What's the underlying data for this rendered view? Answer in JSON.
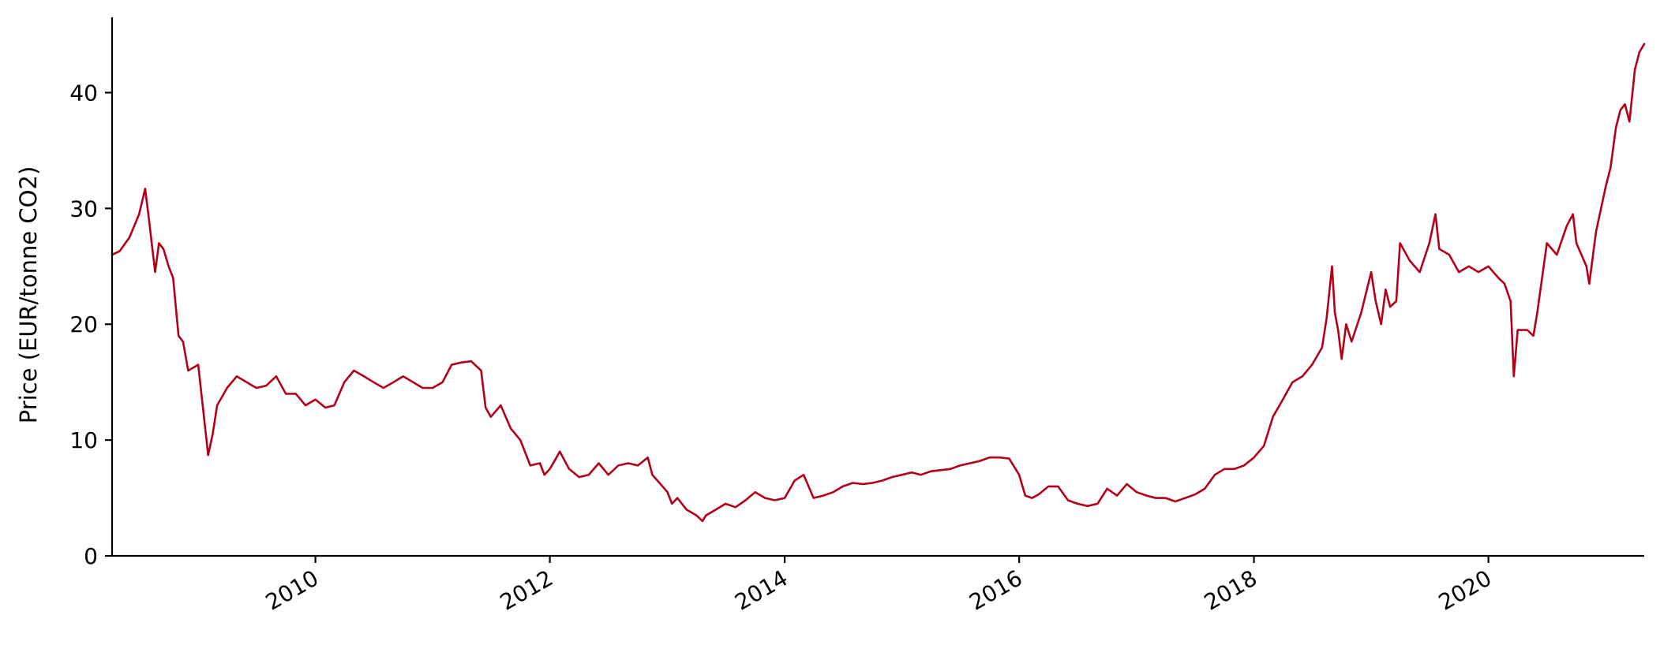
{
  "chart_data": {
    "type": "line",
    "title": "",
    "xlabel": "",
    "ylabel": "Price (EUR/tonne CO2)",
    "xlim": [
      "2008-04-08",
      "2021-04-30"
    ],
    "ylim": [
      0,
      46.5
    ],
    "x_ticks": [
      "2010",
      "2012",
      "2014",
      "2016",
      "2018",
      "2020"
    ],
    "y_ticks": [
      "0",
      "10",
      "20",
      "30",
      "40"
    ],
    "grid": false,
    "legend": "none",
    "line_color": "#b30018",
    "series": [
      {
        "x": [
          "2008-04-08",
          "2008-05-01",
          "2008-06-01",
          "2008-07-01",
          "2008-07-20",
          "2008-08-01",
          "2008-08-20",
          "2008-09-01",
          "2008-09-15",
          "2008-10-01",
          "2008-10-15",
          "2008-11-01",
          "2008-11-15",
          "2008-12-01",
          "2009-01-01",
          "2009-02-01",
          "2009-02-15",
          "2009-03-01",
          "2009-04-01",
          "2009-05-01",
          "2009-06-01",
          "2009-07-01",
          "2009-08-01",
          "2009-09-01",
          "2009-10-01",
          "2009-11-01",
          "2009-12-01",
          "2010-01-01",
          "2010-02-01",
          "2010-03-01",
          "2010-04-01",
          "2010-05-01",
          "2010-06-01",
          "2010-07-01",
          "2010-08-01",
          "2010-09-01",
          "2010-10-01",
          "2010-11-01",
          "2010-12-01",
          "2011-01-01",
          "2011-02-01",
          "2011-03-01",
          "2011-04-01",
          "2011-05-01",
          "2011-06-01",
          "2011-06-15",
          "2011-07-01",
          "2011-08-01",
          "2011-09-01",
          "2011-10-01",
          "2011-11-01",
          "2011-12-01",
          "2011-12-15",
          "2012-01-01",
          "2012-02-01",
          "2012-03-01",
          "2012-04-01",
          "2012-05-01",
          "2012-06-01",
          "2012-07-01",
          "2012-08-01",
          "2012-09-01",
          "2012-10-01",
          "2012-11-01",
          "2012-11-15",
          "2012-12-01",
          "2013-01-01",
          "2013-01-15",
          "2013-02-01",
          "2013-03-01",
          "2013-04-01",
          "2013-04-20",
          "2013-05-01",
          "2013-06-01",
          "2013-07-01",
          "2013-08-01",
          "2013-09-01",
          "2013-10-01",
          "2013-11-01",
          "2013-12-01",
          "2014-01-01",
          "2014-02-01",
          "2014-03-01",
          "2014-04-01",
          "2014-05-01",
          "2014-06-01",
          "2014-07-01",
          "2014-08-01",
          "2014-09-01",
          "2014-10-01",
          "2014-11-01",
          "2014-12-01",
          "2015-01-01",
          "2015-02-01",
          "2015-03-01",
          "2015-04-01",
          "2015-05-01",
          "2015-06-01",
          "2015-07-01",
          "2015-08-01",
          "2015-09-01",
          "2015-10-01",
          "2015-11-01",
          "2015-12-01",
          "2016-01-01",
          "2016-01-20",
          "2016-02-10",
          "2016-03-01",
          "2016-04-01",
          "2016-05-01",
          "2016-06-01",
          "2016-07-01",
          "2016-08-01",
          "2016-09-01",
          "2016-10-01",
          "2016-11-01",
          "2016-12-01",
          "2017-01-01",
          "2017-02-01",
          "2017-03-01",
          "2017-04-01",
          "2017-05-01",
          "2017-06-01",
          "2017-07-01",
          "2017-08-01",
          "2017-09-01",
          "2017-10-01",
          "2017-11-01",
          "2017-12-01",
          "2018-01-01",
          "2018-02-01",
          "2018-03-01",
          "2018-04-01",
          "2018-05-01",
          "2018-06-01",
          "2018-07-01",
          "2018-08-01",
          "2018-08-15",
          "2018-09-01",
          "2018-09-10",
          "2018-09-20",
          "2018-10-01",
          "2018-10-15",
          "2018-11-01",
          "2018-12-01",
          "2019-01-01",
          "2019-01-15",
          "2019-02-01",
          "2019-02-15",
          "2019-03-01",
          "2019-03-20",
          "2019-04-01",
          "2019-05-01",
          "2019-06-01",
          "2019-07-01",
          "2019-07-20",
          "2019-08-01",
          "2019-09-01",
          "2019-10-01",
          "2019-11-01",
          "2019-12-01",
          "2020-01-01",
          "2020-02-01",
          "2020-02-20",
          "2020-03-10",
          "2020-03-20",
          "2020-04-01",
          "2020-05-01",
          "2020-05-20",
          "2020-06-01",
          "2020-07-01",
          "2020-08-01",
          "2020-09-01",
          "2020-09-20",
          "2020-10-01",
          "2020-11-01",
          "2020-11-10",
          "2020-12-01",
          "2021-01-01",
          "2021-01-15",
          "2021-02-01",
          "2021-02-15",
          "2021-03-01",
          "2021-03-15",
          "2021-04-01",
          "2021-04-15",
          "2021-04-30"
        ],
        "y": [
          26.0,
          26.3,
          27.5,
          29.5,
          31.7,
          29.0,
          24.5,
          27.0,
          26.5,
          25.0,
          24.0,
          19.0,
          18.5,
          16.0,
          16.5,
          8.7,
          10.5,
          13.0,
          14.5,
          15.5,
          15.0,
          14.5,
          14.7,
          15.5,
          14.0,
          14.0,
          13.0,
          13.5,
          12.8,
          13.0,
          15.0,
          16.0,
          15.5,
          15.0,
          14.5,
          15.0,
          15.5,
          15.0,
          14.5,
          14.5,
          15.0,
          16.5,
          16.7,
          16.8,
          16.0,
          12.8,
          12.0,
          13.0,
          11.0,
          10.0,
          7.8,
          8.0,
          7.0,
          7.5,
          9.0,
          7.5,
          6.8,
          7.0,
          8.0,
          7.0,
          7.8,
          8.0,
          7.8,
          8.5,
          7.0,
          6.5,
          5.5,
          4.5,
          5.0,
          4.0,
          3.5,
          3.0,
          3.5,
          4.0,
          4.5,
          4.2,
          4.8,
          5.5,
          5.0,
          4.8,
          5.0,
          6.5,
          7.0,
          5.0,
          5.2,
          5.5,
          6.0,
          6.3,
          6.2,
          6.3,
          6.5,
          6.8,
          7.0,
          7.2,
          7.0,
          7.3,
          7.4,
          7.5,
          7.8,
          8.0,
          8.2,
          8.5,
          8.5,
          8.4,
          7.0,
          5.2,
          5.0,
          5.3,
          6.0,
          6.0,
          4.8,
          4.5,
          4.3,
          4.5,
          5.8,
          5.2,
          6.2,
          5.5,
          5.2,
          5.0,
          5.0,
          4.7,
          5.0,
          5.3,
          5.8,
          7.0,
          7.5,
          7.5,
          7.8,
          8.5,
          9.5,
          12.0,
          13.5,
          15.0,
          15.5,
          16.5,
          18.0,
          20.5,
          25.0,
          21.0,
          19.5,
          17.0,
          20.0,
          18.5,
          21.0,
          24.5,
          22.0,
          20.0,
          23.0,
          21.5,
          22.0,
          27.0,
          25.5,
          24.5,
          27.0,
          29.5,
          26.5,
          26.0,
          24.5,
          25.0,
          24.5,
          25.0,
          24.0,
          23.5,
          22.0,
          15.5,
          19.5,
          19.5,
          19.0,
          21.0,
          27.0,
          26.0,
          28.5,
          29.5,
          27.0,
          25.0,
          23.5,
          28.0,
          32.0,
          33.5,
          37.0,
          38.5,
          39.0,
          37.5,
          42.0,
          43.5,
          44.2
        ]
      }
    ]
  }
}
